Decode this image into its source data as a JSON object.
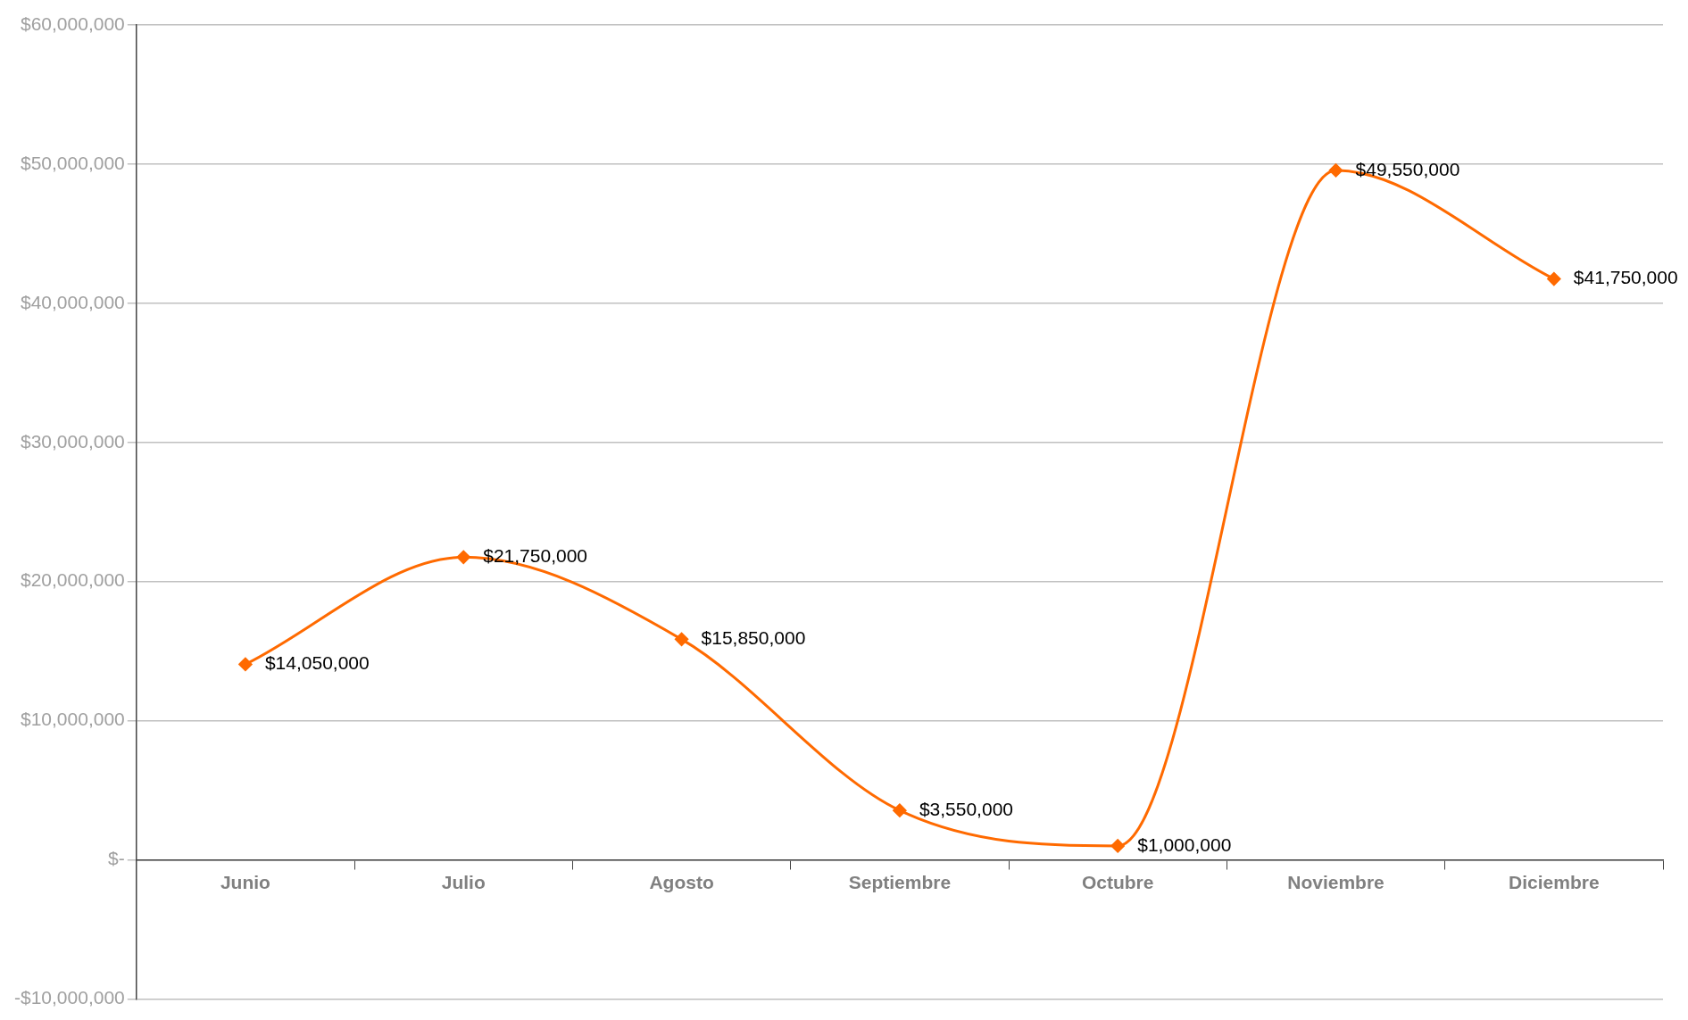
{
  "chart_data": {
    "type": "line",
    "categories": [
      "Junio",
      "Julio",
      "Agosto",
      "Septiembre",
      "Octubre",
      "Noviembre",
      "Diciembre"
    ],
    "series": [
      {
        "color": "#ff6a00",
        "values": [
          14050000,
          21750000,
          15850000,
          3550000,
          1000000,
          49550000,
          41750000
        ],
        "value_labels": [
          "$14,050,000",
          "$21,750,000",
          "$15,850,000",
          "$3,550,000",
          "$1,000,000",
          "$49,550,000",
          "$41,750,000"
        ]
      }
    ],
    "ylim": [
      -10000000,
      60000000
    ],
    "yticks": [
      {
        "value": -10000000,
        "label": "-$10,000,000"
      },
      {
        "value": 0,
        "label": "$-"
      },
      {
        "value": 10000000,
        "label": "$10,000,000"
      },
      {
        "value": 20000000,
        "label": "$20,000,000"
      },
      {
        "value": 30000000,
        "label": "$30,000,000"
      },
      {
        "value": 40000000,
        "label": "$40,000,000"
      },
      {
        "value": 50000000,
        "label": "$50,000,000"
      },
      {
        "value": 60000000,
        "label": "$60,000,000"
      }
    ],
    "grid": "y",
    "legend": false,
    "marker": "diamond",
    "line_style": "solid"
  }
}
